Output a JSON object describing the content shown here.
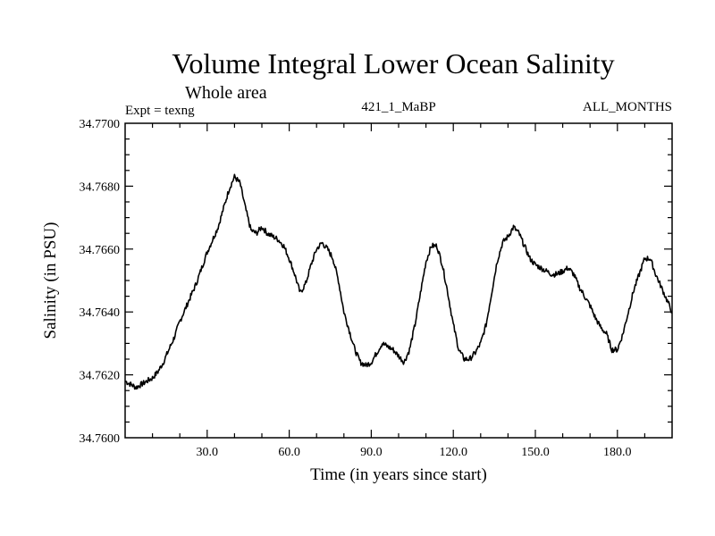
{
  "chart_data": {
    "type": "line",
    "title": "Volume Integral Lower Ocean Salinity",
    "subtitle": "Whole area",
    "experiment": "Expt = texng",
    "run_id": "421_1_MaBP",
    "months": "ALL_MONTHS",
    "xlabel": "Time (in years since start)",
    "ylabel": "Salinity (in PSU)",
    "xlim": [
      0,
      200
    ],
    "ylim": [
      34.76,
      34.77
    ],
    "x_ticks": [
      "30.0",
      "60.0",
      "90.0",
      "120.0",
      "150.0",
      "180.0"
    ],
    "x_tick_values": [
      30,
      60,
      90,
      120,
      150,
      180
    ],
    "y_ticks": [
      "34.7600",
      "34.7620",
      "34.7640",
      "34.7660",
      "34.7680",
      "34.7700"
    ],
    "y_tick_values": [
      34.76,
      34.762,
      34.764,
      34.766,
      34.768,
      34.77
    ],
    "grid": false,
    "series": [
      {
        "name": "salinity",
        "x": [
          0,
          2,
          4,
          6,
          8,
          10,
          12,
          14,
          16,
          18,
          20,
          22,
          24,
          26,
          28,
          30,
          32,
          34,
          36,
          38,
          40,
          42,
          44,
          46,
          48,
          50,
          52,
          54,
          56,
          58,
          60,
          62,
          64,
          66,
          68,
          70,
          72,
          74,
          76,
          78,
          80,
          82,
          84,
          86,
          88,
          90,
          92,
          94,
          96,
          98,
          100,
          102,
          104,
          106,
          108,
          110,
          112,
          114,
          116,
          118,
          120,
          122,
          124,
          126,
          128,
          130,
          132,
          134,
          136,
          138,
          140,
          142,
          144,
          146,
          148,
          150,
          152,
          154,
          156,
          158,
          160,
          162,
          164,
          166,
          168,
          170,
          172,
          174,
          176,
          178,
          180,
          182,
          184,
          186,
          188,
          190,
          192,
          194,
          196,
          198,
          200
        ],
        "y": [
          34.7618,
          34.7617,
          34.7616,
          34.7617,
          34.7618,
          34.7619,
          34.7621,
          34.7624,
          34.7628,
          34.7632,
          34.7637,
          34.7641,
          34.7645,
          34.7649,
          34.7654,
          34.7659,
          34.7663,
          34.7667,
          34.7673,
          34.7679,
          34.7683,
          34.7681,
          34.7673,
          34.7666,
          34.7665,
          34.7667,
          34.7665,
          34.7664,
          34.7663,
          34.7661,
          34.7657,
          34.7652,
          34.7646,
          34.7649,
          34.7655,
          34.766,
          34.7662,
          34.766,
          34.7657,
          34.765,
          34.764,
          34.7634,
          34.7628,
          34.7624,
          34.7623,
          34.7624,
          34.7627,
          34.763,
          34.7629,
          34.7628,
          34.7626,
          34.7624,
          34.7628,
          34.7636,
          34.7646,
          34.7656,
          34.7661,
          34.7661,
          34.7655,
          34.7646,
          34.7636,
          34.7628,
          34.7625,
          34.7625,
          34.7627,
          34.763,
          34.7636,
          34.7646,
          34.7656,
          34.7662,
          34.7664,
          34.7667,
          34.7665,
          34.7661,
          34.7657,
          34.7655,
          34.7654,
          34.7653,
          34.7652,
          34.7652,
          34.7653,
          34.7654,
          34.7652,
          34.7648,
          34.7645,
          34.7642,
          34.7638,
          34.7635,
          34.7633,
          34.7628,
          34.7628,
          34.7633,
          34.764,
          34.7647,
          34.7652,
          34.7657,
          34.7657,
          34.7652,
          34.7648,
          34.7644,
          34.764
        ]
      }
    ]
  }
}
